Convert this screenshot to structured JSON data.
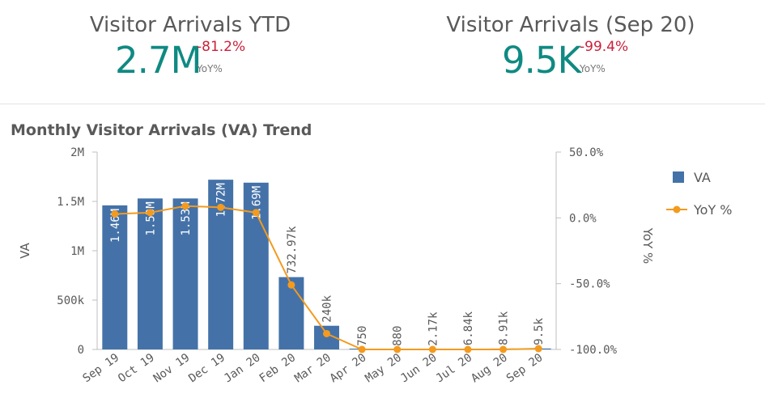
{
  "kpis": [
    {
      "title": "Visitor Arrivals YTD",
      "value": "2.7M",
      "delta": "-81.2%",
      "delta_unit": "YoY%"
    },
    {
      "title": "Visitor Arrivals (Sep 20)",
      "value": "9.5K",
      "delta": "-99.4%",
      "delta_unit": "YoY%"
    }
  ],
  "chart_title": "Monthly Visitor Arrivals (VA) Trend",
  "colors": {
    "kpi_value": "#0f8a82",
    "negative": "#cc1f3a",
    "bar": "#4472a8",
    "line": "#f39a1f"
  },
  "chart_data": {
    "type": "bar",
    "categories": [
      "Sep 19",
      "Oct 19",
      "Nov 19",
      "Dec 19",
      "Jan 20",
      "Feb 20",
      "Mar 20",
      "Apr 20",
      "May 20",
      "Jun 20",
      "Jul 20",
      "Aug 20",
      "Sep 20"
    ],
    "series": [
      {
        "name": "VA",
        "type": "bar",
        "axis": "left",
        "values": [
          1460000,
          1530000,
          1530000,
          1720000,
          1690000,
          732970,
          240000,
          750,
          880,
          2170,
          6840,
          8910,
          9500
        ],
        "labels": [
          "1.46M",
          "1.53M",
          "1.53M",
          "1.72M",
          "1.69M",
          "732.97k",
          "240k",
          "750",
          "880",
          "2.17k",
          "6.84k",
          "8.91k",
          "9.5k"
        ]
      },
      {
        "name": "YoY %",
        "type": "line",
        "axis": "right",
        "values": [
          3,
          4,
          9,
          8,
          4,
          -51,
          -88,
          -100,
          -100,
          -100,
          -100,
          -100,
          -99.4
        ]
      }
    ],
    "ylabel": "VA",
    "ylabel_right": "YoY %",
    "ylim": [
      0,
      2000000
    ],
    "ylim_right": [
      -100,
      50
    ],
    "yticks": [
      "0",
      "500k",
      "1M",
      "1.5M",
      "2M"
    ],
    "yticks_right": [
      "-100.0%",
      "-50.0%",
      "0.0%",
      "50.0%"
    ],
    "legend_position": "right",
    "grid": false
  }
}
